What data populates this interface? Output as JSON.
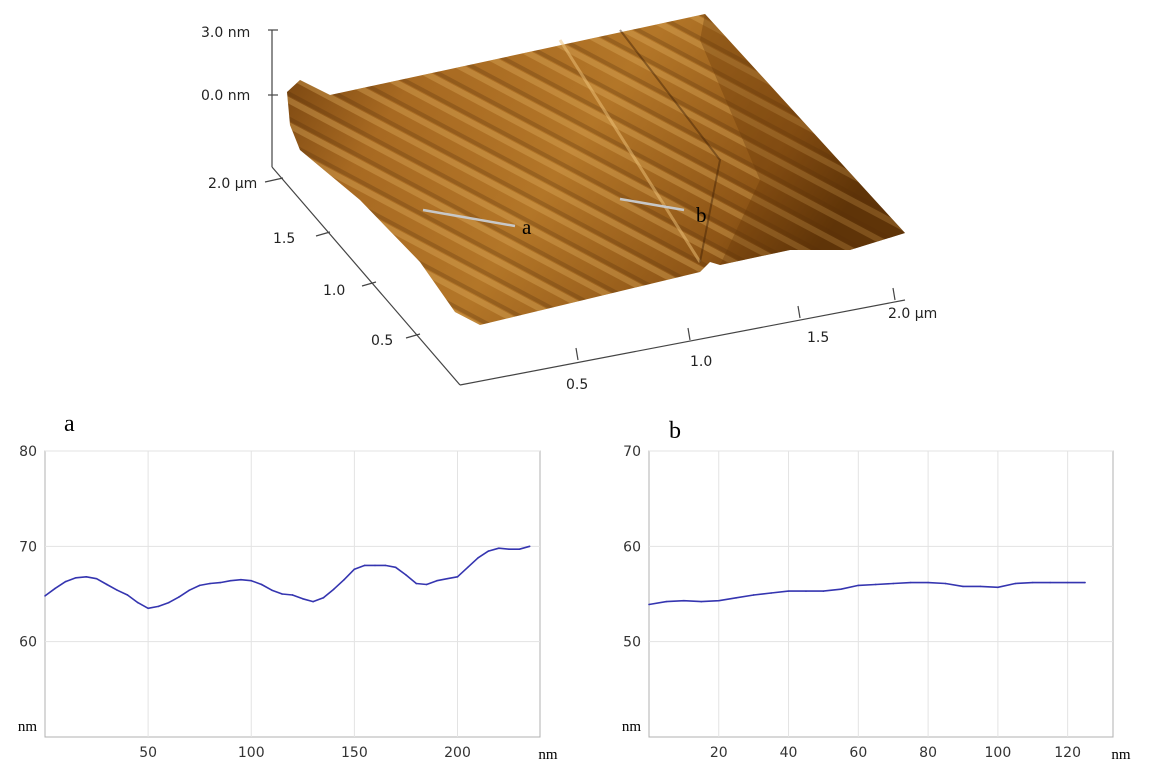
{
  "afm_image": {
    "z_ticks": [
      "3.0 nm",
      "0.0 nm"
    ],
    "y_axis_ticks": [
      "2.0 µm",
      "1.5",
      "1.0",
      "0.5"
    ],
    "x_axis_ticks": [
      "0.5",
      "1.0",
      "1.5",
      "2.0 µm"
    ],
    "markers": [
      "a",
      "b"
    ],
    "colors": {
      "surface_dark": "#5a3208",
      "surface_mid": "#a8661c",
      "surface_light": "#d9a44a"
    }
  },
  "chart_data": [
    {
      "type": "line",
      "panel_label": "a",
      "xlabel": "nm",
      "ylabel": "nm",
      "xlim": [
        0,
        240
      ],
      "ylim": [
        50,
        80
      ],
      "x_ticks": [
        "50",
        "100",
        "150",
        "200"
      ],
      "y_ticks": [
        "80",
        "70",
        "60"
      ],
      "grid": true,
      "line_color": "#3535b0",
      "x": [
        0,
        5,
        10,
        15,
        20,
        25,
        30,
        35,
        40,
        45,
        50,
        55,
        60,
        65,
        70,
        75,
        80,
        85,
        90,
        95,
        100,
        105,
        110,
        115,
        120,
        125,
        130,
        135,
        140,
        145,
        150,
        155,
        160,
        165,
        170,
        175,
        180,
        185,
        190,
        195,
        200,
        205,
        210,
        215,
        220,
        225,
        230,
        235
      ],
      "y": [
        64.8,
        65.6,
        66.3,
        66.7,
        66.8,
        66.6,
        66.0,
        65.4,
        64.9,
        64.1,
        63.5,
        63.7,
        64.1,
        64.7,
        65.4,
        65.9,
        66.1,
        66.2,
        66.4,
        66.5,
        66.4,
        66.0,
        65.4,
        65.0,
        64.9,
        64.5,
        64.2,
        64.6,
        65.5,
        66.5,
        67.6,
        68.0,
        68.0,
        68.0,
        67.8,
        67.0,
        66.1,
        66.0,
        66.4,
        66.6,
        66.8,
        67.8,
        68.8,
        69.5,
        69.8,
        69.7,
        69.7,
        70.0
      ]
    },
    {
      "type": "line",
      "panel_label": "b",
      "xlabel": "nm",
      "ylabel": "nm",
      "xlim": [
        0,
        133
      ],
      "ylim": [
        40,
        70
      ],
      "x_ticks": [
        "20",
        "40",
        "60",
        "80",
        "100",
        "120"
      ],
      "y_ticks": [
        "70",
        "60",
        "50"
      ],
      "grid": true,
      "line_color": "#3535b0",
      "x": [
        0,
        5,
        10,
        15,
        20,
        25,
        30,
        35,
        40,
        45,
        50,
        55,
        60,
        65,
        70,
        75,
        80,
        85,
        90,
        95,
        100,
        105,
        110,
        115,
        120,
        125
      ],
      "y": [
        53.9,
        54.2,
        54.3,
        54.2,
        54.3,
        54.6,
        54.9,
        55.1,
        55.3,
        55.3,
        55.3,
        55.5,
        55.9,
        56.0,
        56.1,
        56.2,
        56.2,
        56.1,
        55.8,
        55.8,
        55.7,
        56.1,
        56.2,
        56.2,
        56.2,
        56.2
      ]
    }
  ]
}
